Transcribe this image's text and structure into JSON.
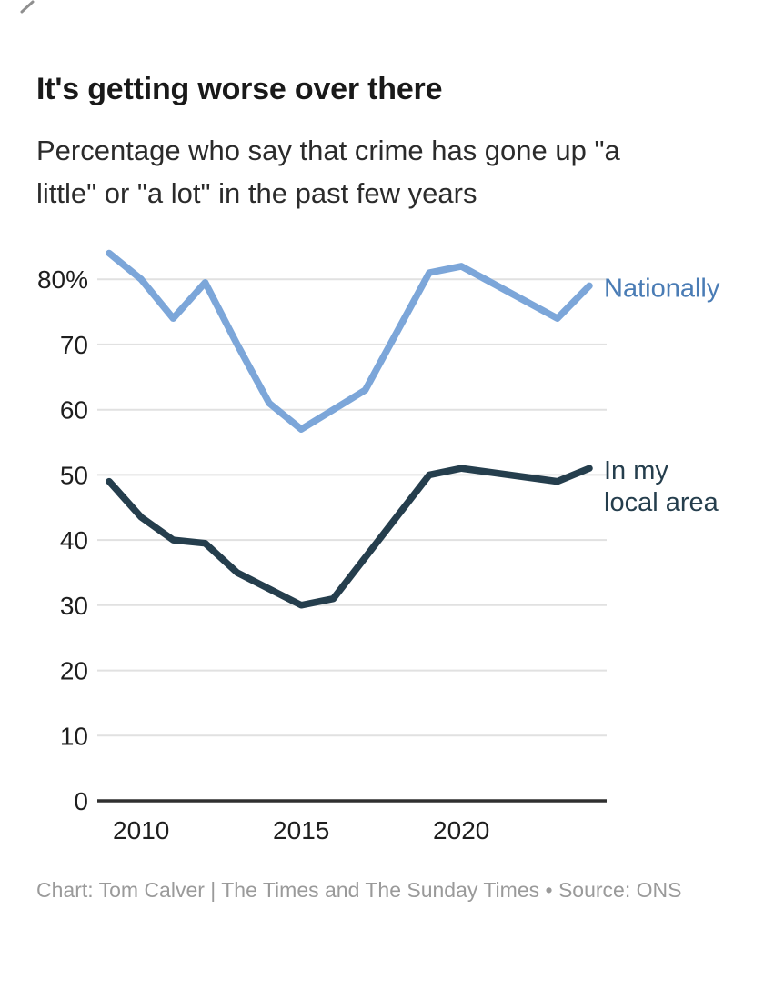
{
  "header": {
    "title": "It's getting worse over there",
    "subtitle": "Percentage who say that crime has gone up \"a\nlittle\" or \"a lot\" in the past few years"
  },
  "footer": {
    "credit": "Chart: Tom Calver | The Times and The Sunday Times • Source: ONS"
  },
  "chart_data": {
    "type": "line",
    "title": "It's getting worse over there",
    "subtitle": "Percentage who say that crime has gone up \"a little\" or \"a lot\" in the past few years",
    "xlabel": "",
    "ylabel": "",
    "xlim": [
      2009,
      2024
    ],
    "ylim": [
      0,
      87
    ],
    "grid": "horizontal-only",
    "legend_position": "labels-at-line-ends",
    "colors": {
      "grid": "#e1e1e1",
      "axis": "#303030",
      "tick_text": "#1e1e1e"
    },
    "x_ticks": [
      {
        "value": 2010,
        "label": "2010"
      },
      {
        "value": 2015,
        "label": "2015"
      },
      {
        "value": 2020,
        "label": "2020"
      }
    ],
    "y_ticks": [
      {
        "value": 0,
        "label": "0"
      },
      {
        "value": 10,
        "label": "10"
      },
      {
        "value": 20,
        "label": "20"
      },
      {
        "value": 30,
        "label": "30"
      },
      {
        "value": 40,
        "label": "40"
      },
      {
        "value": 50,
        "label": "50"
      },
      {
        "value": 60,
        "label": "60"
      },
      {
        "value": 70,
        "label": "70"
      },
      {
        "value": 80,
        "label": "80%"
      }
    ],
    "series": [
      {
        "name": "Nationally",
        "label_lines": [
          "Nationally"
        ],
        "color": "#7ca6d9",
        "label_color": "#4a7cb5",
        "points": [
          {
            "x": 2009,
            "y": 84
          },
          {
            "x": 2010,
            "y": 80
          },
          {
            "x": 2011,
            "y": 74
          },
          {
            "x": 2012,
            "y": 79.5
          },
          {
            "x": 2013,
            "y": 70
          },
          {
            "x": 2014,
            "y": 61
          },
          {
            "x": 2015,
            "y": 57
          },
          {
            "x": 2016,
            "y": 60
          },
          {
            "x": 2017,
            "y": 63
          },
          {
            "x": 2019,
            "y": 81
          },
          {
            "x": 2020,
            "y": 82
          },
          {
            "x": 2023,
            "y": 74
          },
          {
            "x": 2024,
            "y": 79
          }
        ]
      },
      {
        "name": "In my local area",
        "label_lines": [
          "In my",
          "local area"
        ],
        "color": "#253e4d",
        "label_color": "#253e4d",
        "points": [
          {
            "x": 2009,
            "y": 49
          },
          {
            "x": 2010,
            "y": 43.5
          },
          {
            "x": 2011,
            "y": 40
          },
          {
            "x": 2012,
            "y": 39.5
          },
          {
            "x": 2013,
            "y": 35
          },
          {
            "x": 2015,
            "y": 30
          },
          {
            "x": 2016,
            "y": 31
          },
          {
            "x": 2019,
            "y": 50
          },
          {
            "x": 2020,
            "y": 51
          },
          {
            "x": 2023,
            "y": 49
          },
          {
            "x": 2024,
            "y": 51
          }
        ]
      }
    ]
  }
}
